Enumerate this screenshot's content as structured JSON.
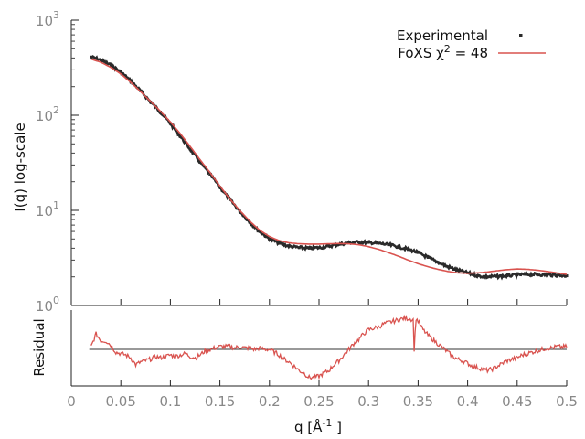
{
  "chart_data": [
    {
      "type": "scatter",
      "panel": "main",
      "ylabel": "I(q) log-scale",
      "yscale": "log",
      "ylim": [
        1,
        1000
      ],
      "xlim": [
        0,
        0.5
      ],
      "y_ticks": [
        {
          "value": 1,
          "base": "10",
          "exp": "0"
        },
        {
          "value": 10,
          "base": "10",
          "exp": "1"
        },
        {
          "value": 100,
          "base": "10",
          "exp": "2"
        },
        {
          "value": 1000,
          "base": "10",
          "exp": "3"
        }
      ],
      "legend": {
        "position": "top-right",
        "experimental_label": "Experimental",
        "fit_label_prefix": "FoXS χ",
        "fit_label_sup": "2",
        "fit_label_suffix": " = 48"
      },
      "series": [
        {
          "name": "Experimental",
          "color": "#2a2a2a",
          "x": [
            0.02,
            0.03,
            0.04,
            0.05,
            0.06,
            0.07,
            0.08,
            0.09,
            0.1,
            0.11,
            0.12,
            0.13,
            0.14,
            0.15,
            0.16,
            0.17,
            0.18,
            0.19,
            0.2,
            0.21,
            0.22,
            0.23,
            0.24,
            0.25,
            0.26,
            0.27,
            0.28,
            0.29,
            0.3,
            0.31,
            0.32,
            0.33,
            0.34,
            0.35,
            0.36,
            0.37,
            0.38,
            0.39,
            0.4,
            0.41,
            0.42,
            0.43,
            0.44,
            0.45,
            0.46,
            0.47,
            0.48,
            0.49,
            0.5
          ],
          "y": [
            410,
            380,
            335,
            285,
            230,
            180,
            138,
            108,
            82,
            60,
            44,
            32,
            24,
            17.5,
            13,
            9.8,
            7.5,
            6.0,
            5.0,
            4.5,
            4.2,
            4.05,
            4.0,
            4.05,
            4.2,
            4.4,
            4.55,
            4.65,
            4.6,
            4.5,
            4.35,
            4.15,
            3.9,
            3.6,
            3.2,
            2.85,
            2.55,
            2.35,
            2.2,
            2.05,
            2.0,
            2.02,
            2.05,
            2.1,
            2.12,
            2.12,
            2.1,
            2.08,
            2.05
          ]
        },
        {
          "name": "FoXS",
          "color": "#d9534f",
          "x": [
            0.02,
            0.03,
            0.04,
            0.05,
            0.06,
            0.07,
            0.08,
            0.09,
            0.1,
            0.11,
            0.12,
            0.13,
            0.14,
            0.15,
            0.16,
            0.17,
            0.18,
            0.19,
            0.2,
            0.21,
            0.22,
            0.23,
            0.24,
            0.25,
            0.26,
            0.27,
            0.28,
            0.29,
            0.3,
            0.31,
            0.32,
            0.33,
            0.34,
            0.35,
            0.36,
            0.37,
            0.38,
            0.39,
            0.4,
            0.41,
            0.42,
            0.43,
            0.44,
            0.45,
            0.46,
            0.47,
            0.48,
            0.49,
            0.5
          ],
          "y": [
            390,
            360,
            318,
            272,
            222,
            177,
            140,
            110,
            85,
            64,
            47,
            34,
            25,
            18,
            13.2,
            10,
            7.7,
            6.2,
            5.3,
            4.8,
            4.55,
            4.45,
            4.42,
            4.42,
            4.45,
            4.48,
            4.45,
            4.35,
            4.15,
            3.9,
            3.6,
            3.3,
            3.0,
            2.75,
            2.55,
            2.4,
            2.28,
            2.2,
            2.18,
            2.2,
            2.25,
            2.32,
            2.38,
            2.42,
            2.4,
            2.35,
            2.28,
            2.2,
            2.12
          ]
        }
      ]
    },
    {
      "type": "line",
      "panel": "residual",
      "ylabel": "Residual",
      "xlabel": "q [Å",
      "xlabel_sup": "-1",
      "xlabel_suffix": " ]",
      "xlim": [
        0,
        0.5
      ],
      "ylim": [
        -1.3,
        1.4
      ],
      "x_ticks": [
        "0",
        "0.05",
        "0.1",
        "0.15",
        "0.2",
        "0.25",
        "0.3",
        "0.35",
        "0.4",
        "0.45",
        "0.5"
      ],
      "zero_line": 0,
      "series": [
        {
          "name": "Residual",
          "color": "#d9534f",
          "x": [
            0.02,
            0.025,
            0.03,
            0.035,
            0.04,
            0.045,
            0.05,
            0.055,
            0.06,
            0.065,
            0.07,
            0.075,
            0.08,
            0.085,
            0.09,
            0.095,
            0.1,
            0.105,
            0.11,
            0.115,
            0.12,
            0.125,
            0.13,
            0.135,
            0.14,
            0.145,
            0.15,
            0.155,
            0.16,
            0.165,
            0.17,
            0.175,
            0.18,
            0.185,
            0.19,
            0.195,
            0.2,
            0.205,
            0.21,
            0.215,
            0.22,
            0.225,
            0.23,
            0.235,
            0.24,
            0.245,
            0.25,
            0.255,
            0.26,
            0.265,
            0.27,
            0.275,
            0.28,
            0.285,
            0.29,
            0.295,
            0.3,
            0.305,
            0.31,
            0.315,
            0.32,
            0.325,
            0.33,
            0.335,
            0.34,
            0.345,
            0.346,
            0.348,
            0.35,
            0.355,
            0.36,
            0.365,
            0.37,
            0.375,
            0.38,
            0.385,
            0.39,
            0.395,
            0.4,
            0.405,
            0.41,
            0.415,
            0.42,
            0.425,
            0.43,
            0.435,
            0.44,
            0.445,
            0.45,
            0.455,
            0.46,
            0.465,
            0.47,
            0.475,
            0.48,
            0.485,
            0.49,
            0.495,
            0.5
          ],
          "y": [
            0.1,
            0.55,
            0.3,
            0.3,
            0.15,
            -0.1,
            -0.15,
            -0.2,
            -0.3,
            -0.55,
            -0.45,
            -0.4,
            -0.35,
            -0.25,
            -0.3,
            -0.25,
            -0.2,
            -0.25,
            -0.2,
            -0.15,
            -0.25,
            -0.3,
            -0.2,
            -0.05,
            0.0,
            0.05,
            0.1,
            0.1,
            0.1,
            0.05,
            0.1,
            0.05,
            0.05,
            0.0,
            0.05,
            0.0,
            0.0,
            -0.1,
            -0.2,
            -0.35,
            -0.45,
            -0.6,
            -0.75,
            -0.85,
            -1.0,
            -1.0,
            -0.95,
            -0.85,
            -0.75,
            -0.55,
            -0.4,
            -0.2,
            0.0,
            0.2,
            0.35,
            0.55,
            0.7,
            0.75,
            0.8,
            0.9,
            0.95,
            1.0,
            1.05,
            1.1,
            1.1,
            1.05,
            0.0,
            1.1,
            1.0,
            0.7,
            0.5,
            0.35,
            0.2,
            0.05,
            -0.1,
            -0.25,
            -0.35,
            -0.4,
            -0.5,
            -0.6,
            -0.65,
            -0.7,
            -0.75,
            -0.7,
            -0.6,
            -0.5,
            -0.4,
            -0.35,
            -0.3,
            -0.2,
            -0.15,
            -0.1,
            -0.05,
            0.0,
            0.05,
            0.05,
            0.1,
            0.08,
            0.1
          ]
        }
      ]
    }
  ]
}
